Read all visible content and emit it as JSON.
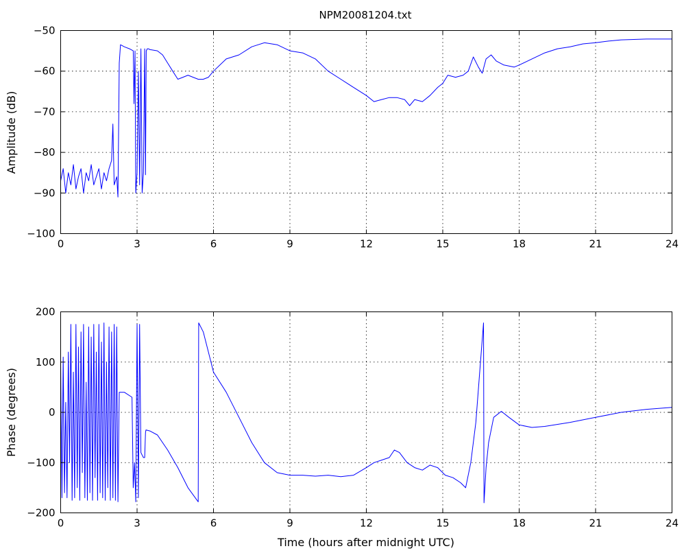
{
  "chart_data": [
    {
      "type": "line",
      "title": "NPM20081204.txt",
      "xlabel": "",
      "ylabel": "Amplitude (dB)",
      "xlim": [
        0,
        24
      ],
      "ylim": [
        -100,
        -50
      ],
      "xticks": [
        0,
        3,
        6,
        9,
        12,
        15,
        18,
        21,
        24
      ],
      "yticks": [
        -100,
        -90,
        -80,
        -70,
        -60,
        -50
      ],
      "xtick_labels": [
        "0",
        "3",
        "6",
        "9",
        "12",
        "15",
        "18",
        "21",
        "24"
      ],
      "ytick_labels": [
        "−100",
        "−90",
        "−80",
        "−70",
        "−60",
        "−50"
      ],
      "grid": true,
      "series": [
        {
          "color": "#0000ff",
          "x": [
            0.0,
            0.1,
            0.2,
            0.3,
            0.4,
            0.5,
            0.6,
            0.7,
            0.8,
            0.9,
            1.0,
            1.1,
            1.2,
            1.3,
            1.4,
            1.5,
            1.6,
            1.7,
            1.8,
            1.9,
            2.0,
            2.05,
            2.1,
            2.2,
            2.25,
            2.3,
            2.35,
            2.5,
            2.7,
            2.85,
            2.88,
            2.92,
            2.95,
            3.0,
            3.05,
            3.1,
            3.15,
            3.2,
            3.25,
            3.3,
            3.33,
            3.36,
            3.4,
            3.45,
            3.5,
            3.8,
            4.0,
            4.2,
            4.4,
            4.6,
            4.8,
            5.0,
            5.2,
            5.4,
            5.6,
            5.8,
            6.0,
            6.5,
            7.0,
            7.5,
            8.0,
            8.5,
            9.0,
            9.5,
            10.0,
            10.5,
            11.0,
            11.5,
            12.0,
            12.3,
            12.6,
            12.9,
            13.2,
            13.5,
            13.7,
            13.9,
            14.2,
            14.5,
            14.8,
            15.0,
            15.2,
            15.5,
            15.8,
            16.0,
            16.2,
            16.4,
            16.55,
            16.7,
            16.9,
            17.1,
            17.4,
            17.8,
            18.0,
            18.5,
            19.0,
            19.5,
            20.0,
            20.5,
            21.0,
            21.5,
            22.0,
            22.5,
            23.0,
            23.5,
            24.0
          ],
          "y": [
            -87,
            -84,
            -90,
            -85,
            -88,
            -83,
            -89,
            -86,
            -84,
            -90,
            -85,
            -87,
            -83,
            -88,
            -86,
            -84,
            -89,
            -85,
            -87,
            -84,
            -82,
            -73,
            -88,
            -86,
            -91,
            -58,
            -53.5,
            -54,
            -54.5,
            -55,
            -68,
            -55,
            -90,
            -85,
            -60,
            -88,
            -54.5,
            -90,
            -85,
            -54.5,
            -85.5,
            -55,
            -54.5,
            -54.5,
            -54.7,
            -55,
            -56,
            -58,
            -60,
            -62,
            -61.5,
            -61,
            -61.5,
            -62,
            -62,
            -61.5,
            -60,
            -57,
            -56,
            -54,
            -53,
            -53.5,
            -55,
            -55.5,
            -57,
            -60,
            -62,
            -64,
            -66,
            -67.5,
            -67,
            -66.5,
            -66.5,
            -67,
            -68.5,
            -67,
            -67.5,
            -66,
            -64,
            -63,
            -61,
            -61.5,
            -61,
            -60,
            -56.5,
            -59,
            -60.5,
            -57,
            -56,
            -57.5,
            -58.5,
            -59,
            -58.5,
            -57,
            -55.5,
            -54.5,
            -54,
            -53.3,
            -53,
            -52.6,
            -52.3,
            -52.2,
            -52.1,
            -52.1,
            -52.1
          ]
        }
      ]
    },
    {
      "type": "line",
      "title": "",
      "xlabel": "Time (hours after midnight UTC)",
      "ylabel": "Phase (degrees)",
      "xlim": [
        0,
        24
      ],
      "ylim": [
        -200,
        200
      ],
      "xticks": [
        0,
        3,
        6,
        9,
        12,
        15,
        18,
        21,
        24
      ],
      "yticks": [
        -200,
        -100,
        0,
        100,
        200
      ],
      "xtick_labels": [
        "0",
        "3",
        "6",
        "9",
        "12",
        "15",
        "18",
        "21",
        "24"
      ],
      "ytick_labels": [
        "−200",
        "−100",
        "0",
        "100",
        "200"
      ],
      "grid": true,
      "series": [
        {
          "color": "#0000ff",
          "x": [
            0.0,
            0.05,
            0.1,
            0.15,
            0.2,
            0.25,
            0.3,
            0.35,
            0.4,
            0.45,
            0.5,
            0.55,
            0.6,
            0.65,
            0.7,
            0.75,
            0.8,
            0.85,
            0.9,
            0.95,
            1.0,
            1.05,
            1.1,
            1.15,
            1.2,
            1.25,
            1.3,
            1.35,
            1.4,
            1.45,
            1.5,
            1.55,
            1.6,
            1.65,
            1.7,
            1.75,
            1.8,
            1.85,
            1.9,
            1.95,
            2.0,
            2.05,
            2.1,
            2.15,
            2.2,
            2.25,
            2.3,
            2.35,
            2.5,
            2.8,
            2.85,
            2.9,
            2.95,
            3.0,
            3.05,
            3.1,
            3.15,
            3.2,
            3.25,
            3.3,
            3.33,
            3.35,
            3.5,
            3.8,
            4.2,
            4.6,
            5.0,
            5.4,
            5.42,
            5.6,
            5.8,
            6.0,
            6.5,
            7.0,
            7.5,
            8.0,
            8.5,
            9.0,
            9.5,
            10.0,
            10.5,
            11.0,
            11.5,
            12.0,
            12.3,
            12.6,
            12.9,
            13.1,
            13.3,
            13.6,
            13.9,
            14.2,
            14.5,
            14.8,
            15.1,
            15.4,
            15.7,
            15.9,
            16.1,
            16.3,
            16.45,
            16.6,
            16.62,
            16.7,
            16.8,
            17.0,
            17.3,
            17.6,
            18.0,
            18.5,
            19.0,
            20.0,
            21.0,
            22.0,
            23.0,
            24.0
          ],
          "y": [
            100,
            -170,
            110,
            -160,
            20,
            -170,
            120,
            -100,
            175,
            -175,
            80,
            -170,
            175,
            -150,
            130,
            -175,
            160,
            -120,
            175,
            -170,
            60,
            -175,
            170,
            -160,
            150,
            -175,
            175,
            -130,
            120,
            -175,
            175,
            -160,
            140,
            -170,
            178,
            -175,
            100,
            -150,
            170,
            -175,
            160,
            -170,
            175,
            -175,
            170,
            -178,
            40,
            40,
            40,
            30,
            -150,
            -100,
            -178,
            175,
            -170,
            175,
            -80,
            -85,
            -90,
            -90,
            -40,
            -35,
            -37,
            -45,
            -75,
            -110,
            -150,
            -178,
            178,
            160,
            120,
            80,
            40,
            -10,
            -60,
            -100,
            -120,
            -125,
            -125,
            -127,
            -125,
            -128,
            -125,
            -110,
            -100,
            -95,
            -90,
            -75,
            -80,
            -100,
            -110,
            -115,
            -105,
            -110,
            -125,
            -130,
            -140,
            -150,
            -100,
            -20,
            80,
            178,
            -180,
            -110,
            -60,
            -10,
            2,
            -10,
            -25,
            -30,
            -28,
            -20,
            -10,
            0,
            6,
            10
          ]
        }
      ]
    }
  ]
}
